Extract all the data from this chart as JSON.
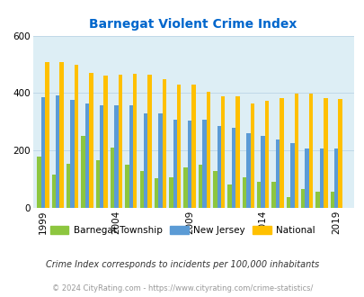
{
  "title": "Barnegat Violent Crime Index",
  "years": [
    1999,
    2000,
    2001,
    2002,
    2003,
    2004,
    2005,
    2006,
    2007,
    2008,
    2009,
    2010,
    2011,
    2012,
    2013,
    2014,
    2015,
    2016,
    2017,
    2018,
    2019
  ],
  "barnegat": [
    178,
    115,
    155,
    250,
    165,
    210,
    150,
    130,
    105,
    108,
    140,
    150,
    130,
    80,
    108,
    92,
    92,
    38,
    65,
    55,
    55
  ],
  "new_jersey": [
    385,
    393,
    377,
    365,
    358,
    357,
    356,
    330,
    328,
    308,
    303,
    308,
    285,
    278,
    260,
    250,
    238,
    226,
    207,
    207,
    207
  ],
  "national": [
    507,
    507,
    498,
    469,
    460,
    465,
    468,
    463,
    447,
    428,
    428,
    404,
    388,
    390,
    365,
    374,
    382,
    398,
    397,
    384,
    380
  ],
  "barnegat_color": "#8dc63f",
  "new_jersey_color": "#5b9bd5",
  "national_color": "#ffc000",
  "bg_color": "#ddeef5",
  "title_color": "#0066cc",
  "grid_color": "#c0d8e8",
  "legend_labels": [
    "Barnegat Township",
    "New Jersey",
    "National"
  ],
  "subtitle": "Crime Index corresponds to incidents per 100,000 inhabitants",
  "footer": "© 2024 CityRating.com - https://www.cityrating.com/crime-statistics/",
  "ylim": [
    0,
    600
  ],
  "yticks": [
    0,
    200,
    400,
    600
  ],
  "xtick_positions": [
    1999,
    2004,
    2009,
    2014,
    2019
  ]
}
